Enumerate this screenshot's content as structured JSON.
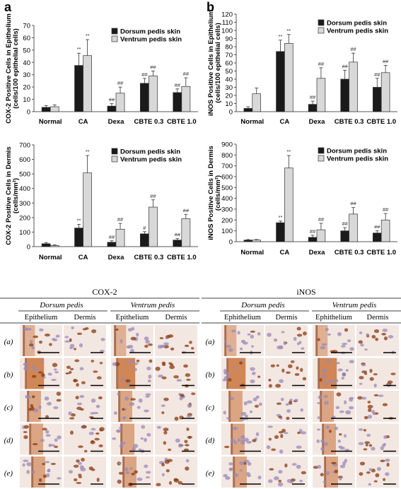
{
  "panel_labels": {
    "a": "a",
    "b": "b"
  },
  "chart_data": [
    {
      "id": "cox2-epi",
      "type": "bar",
      "ylabel": "COX-2 Positive Cells in Epithelium",
      "ylabel2": "(cells/100 epithelial cells)",
      "ylim": [
        0,
        70
      ],
      "yticks": [
        0,
        10,
        20,
        30,
        40,
        50,
        60,
        70
      ],
      "categories": [
        "Normal",
        "CA",
        "Dexa",
        "CBTE 0.3",
        "CBTE 1.0"
      ],
      "legend_position": "top-right",
      "series": [
        {
          "name": "Dorsum pedis skin",
          "color": "#1a1a1a",
          "values": [
            3.5,
            37.5,
            4.5,
            23,
            15.5
          ],
          "errors": [
            1.5,
            10,
            2,
            4,
            3
          ],
          "labels": [
            "",
            "**",
            "##",
            "##",
            "##"
          ]
        },
        {
          "name": "Ventrum pedis skin",
          "color": "#d8d8d8",
          "values": [
            4,
            45.5,
            15,
            29,
            20.5
          ],
          "errors": [
            1.5,
            13,
            5,
            4,
            7
          ],
          "labels": [
            "",
            "**",
            "##",
            "##",
            "##"
          ]
        }
      ]
    },
    {
      "id": "inos-epi",
      "type": "bar",
      "ylabel": "iNOS Positive Cells in Epithelium",
      "ylabel2": "(cells/100 epithelial cells)",
      "ylim": [
        0,
        120
      ],
      "yticks": [
        0,
        10,
        20,
        30,
        40,
        50,
        60,
        70,
        80,
        90,
        100,
        110,
        120
      ],
      "categories": [
        "Normal",
        "CA",
        "Dexa",
        "CBTE 0.3",
        "CBTE 1.0"
      ],
      "legend_position": "top-right",
      "series": [
        {
          "name": "Dorsum pedis skin",
          "color": "#1a1a1a",
          "values": [
            4,
            74,
            9,
            40,
            30
          ],
          "errors": [
            2,
            14,
            4,
            11,
            11
          ],
          "labels": [
            "",
            "**",
            "##",
            "##",
            "##"
          ]
        },
        {
          "name": "Ventrum pedis skin",
          "color": "#d8d8d8",
          "values": [
            22,
            84,
            41,
            61,
            48
          ],
          "errors": [
            7,
            11,
            13,
            11,
            9
          ],
          "labels": [
            "",
            "**",
            "##",
            "##",
            "##"
          ]
        }
      ]
    },
    {
      "id": "cox2-dermis",
      "type": "bar",
      "ylabel": "COX-2 Positive Cells in Dermis",
      "ylabel2": "(cells/mm²)",
      "ylim": [
        0,
        700
      ],
      "yticks": [
        0,
        100,
        200,
        300,
        400,
        500,
        600,
        700
      ],
      "categories": [
        "Normal",
        "CA",
        "Dexa",
        "CBTE 0.3",
        "CBTE 1.0"
      ],
      "legend_position": "top-right",
      "series": [
        {
          "name": "Dorsum pedis skin",
          "color": "#1a1a1a",
          "values": [
            20,
            128,
            30,
            88,
            45
          ],
          "errors": [
            8,
            25,
            10,
            15,
            10
          ],
          "labels": [
            "",
            "**",
            "##",
            "#",
            "##"
          ]
        },
        {
          "name": "Ventrum pedis skin",
          "color": "#d8d8d8",
          "values": [
            8,
            507,
            120,
            272,
            192
          ],
          "errors": [
            5,
            120,
            40,
            50,
            30
          ],
          "labels": [
            "",
            "**",
            "##",
            "##",
            "##"
          ]
        }
      ]
    },
    {
      "id": "inos-dermis",
      "type": "bar",
      "ylabel": "iNOS Positive Cells in Dermis",
      "ylabel2": "(cells/mm²)",
      "ylim": [
        0,
        900
      ],
      "yticks": [
        0,
        100,
        200,
        300,
        400,
        500,
        600,
        700,
        800,
        900
      ],
      "categories": [
        "Normal",
        "CA",
        "Dexa",
        "CBTE 0.3",
        "CBTE 1.0"
      ],
      "legend_position": "top-right",
      "series": [
        {
          "name": "Dorsum pedis skin",
          "color": "#1a1a1a",
          "values": [
            15,
            175,
            40,
            100,
            80
          ],
          "errors": [
            5,
            15,
            20,
            30,
            20
          ],
          "labels": [
            "",
            "**",
            "##",
            "##",
            "##"
          ]
        },
        {
          "name": "Ventrum pedis skin",
          "color": "#d8d8d8",
          "values": [
            15,
            680,
            110,
            255,
            200
          ],
          "errors": [
            5,
            115,
            60,
            60,
            60
          ],
          "labels": [
            "",
            "**",
            "##",
            "##",
            "##"
          ]
        }
      ]
    }
  ],
  "micrographs": {
    "cox2": {
      "title": "COX-2",
      "dorsum": "Dorsum pedis",
      "ventrum": "Ventrum pedis",
      "col_labels": [
        "Epithelium",
        "Dermis",
        "Epithelium",
        "Dermis"
      ]
    },
    "inos": {
      "title": "iNOS",
      "dorsum": "Dorsum pedis",
      "ventrum": "Ventrum pedis",
      "col_labels": [
        "Ephithelium",
        "Dermis",
        "Ephithelium",
        "Dermis"
      ]
    },
    "row_labels": [
      "(a)",
      "(b)",
      "(c)",
      "(d)",
      "(e)"
    ],
    "stain_colors": {
      "background": "#f3e7e2",
      "epithelium": "#c9743c",
      "dark": "#8a3a10",
      "nuclei": "#9a8ab8",
      "scale_bar": "#000000"
    }
  }
}
